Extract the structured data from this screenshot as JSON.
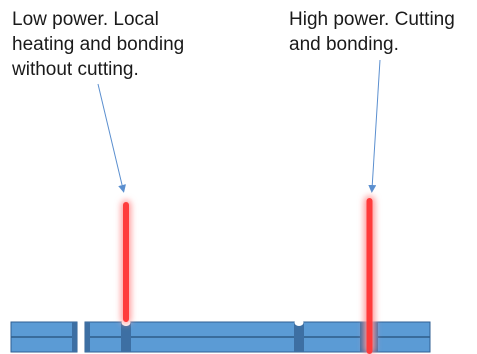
{
  "annotations": {
    "low_power": "Low power. Local\nheating and bonding\nwithout cutting.",
    "high_power": "High power. Cutting\nand bonding."
  },
  "colors": {
    "strip_fill": "#5b9bd5",
    "strip_stroke": "#2f5f93",
    "strip_mid_line": "#2e5c8a",
    "weld_mark": "#3d6fa3",
    "laser_core": "#ff3b3b",
    "laser_glow": "#ff9a9a",
    "arrow": "#5b8fcf",
    "text": "#1a1a1a"
  }
}
